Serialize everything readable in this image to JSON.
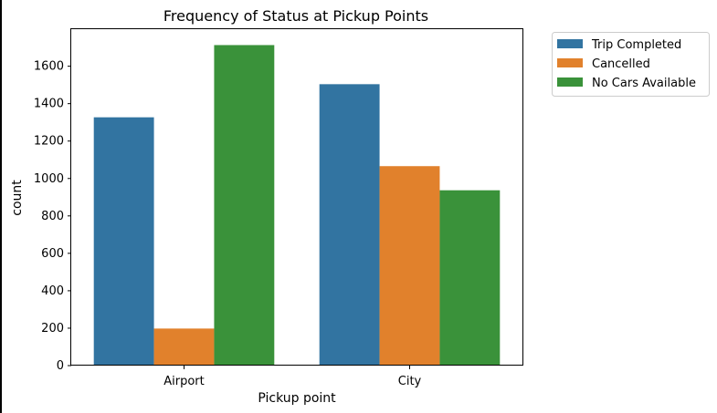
{
  "chart_data": {
    "type": "bar",
    "title": "Frequency of Status at Pickup Points",
    "xlabel": "Pickup point",
    "ylabel": "count",
    "categories": [
      "Airport",
      "City"
    ],
    "series": [
      {
        "name": "Trip Completed",
        "color": "#3274a1",
        "values": [
          1327,
          1504
        ]
      },
      {
        "name": "Cancelled",
        "color": "#e1812c",
        "values": [
          198,
          1066
        ]
      },
      {
        "name": "No Cars Available",
        "color": "#3a923a",
        "values": [
          1713,
          937
        ]
      }
    ],
    "ylim": [
      0,
      1798
    ],
    "yticks": [
      0,
      200,
      400,
      600,
      800,
      1000,
      1200,
      1400,
      1600
    ],
    "grid": false,
    "legend_position": "outside-upper-right"
  }
}
